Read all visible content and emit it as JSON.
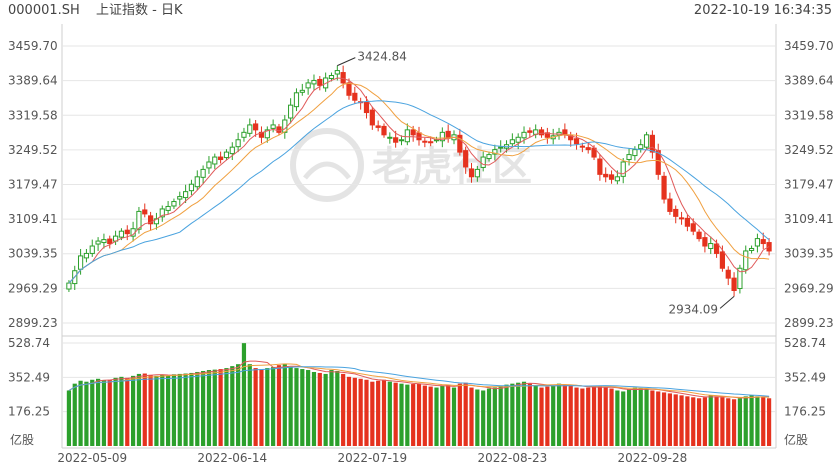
{
  "header": {
    "symbol": "000001.SH",
    "name": "上证指数 - 日K",
    "timestamp": "2022-10-19 16:34:35"
  },
  "watermark": "老虎社区",
  "colors": {
    "up": "#2ca02c",
    "down": "#e5321e",
    "ma5": "#e05a5a",
    "ma10": "#f0a040",
    "ma20": "#4aa3df",
    "grid": "#e6e6e6",
    "text": "#555555"
  },
  "chart_data": {
    "type": "candlestick",
    "price_axis": {
      "ticks": [
        "3459.70",
        "3389.64",
        "3319.58",
        "3249.52",
        "3179.47",
        "3109.41",
        "3039.35",
        "2969.29",
        "2899.23"
      ],
      "ylim": [
        2899.23,
        3459.7
      ]
    },
    "volume_axis": {
      "ticks": [
        "528.74",
        "352.49",
        "176.25"
      ],
      "unit_label": "亿股"
    },
    "x_tick_labels": [
      "2022-05-09",
      "2022-06-14",
      "2022-07-19",
      "2022-08-23",
      "2022-09-28"
    ],
    "annotations": {
      "high_label": "3424.84",
      "low_label": "2934.09"
    },
    "closes": [
      2980,
      3005,
      3035,
      3040,
      3055,
      3065,
      3068,
      3060,
      3075,
      3085,
      3080,
      3090,
      3125,
      3120,
      3100,
      3110,
      3130,
      3135,
      3145,
      3155,
      3165,
      3180,
      3195,
      3210,
      3225,
      3235,
      3230,
      3245,
      3255,
      3270,
      3285,
      3300,
      3290,
      3275,
      3290,
      3300,
      3285,
      3310,
      3340,
      3365,
      3370,
      3385,
      3390,
      3380,
      3395,
      3400,
      3410,
      3385,
      3360,
      3350,
      3345,
      3325,
      3300,
      3295,
      3280,
      3275,
      3265,
      3270,
      3290,
      3280,
      3270,
      3265,
      3265,
      3270,
      3285,
      3275,
      3280,
      3245,
      3215,
      3195,
      3210,
      3235,
      3240,
      3250,
      3255,
      3260,
      3270,
      3275,
      3285,
      3285,
      3290,
      3280,
      3275,
      3278,
      3285,
      3280,
      3270,
      3262,
      3255,
      3250,
      3235,
      3200,
      3195,
      3190,
      3195,
      3225,
      3240,
      3250,
      3260,
      3280,
      3245,
      3200,
      3150,
      3125,
      3115,
      3110,
      3095,
      3085,
      3070,
      3055,
      3060,
      3040,
      3010,
      2990,
      2965,
      3010,
      3045,
      3050,
      3070,
      3060,
      3045
    ],
    "volumes": [
      285,
      320,
      335,
      330,
      340,
      345,
      338,
      340,
      350,
      355,
      350,
      360,
      370,
      372,
      365,
      360,
      365,
      360,
      368,
      370,
      372,
      375,
      380,
      385,
      390,
      392,
      395,
      400,
      410,
      420,
      528,
      420,
      400,
      395,
      400,
      405,
      415,
      420,
      405,
      400,
      395,
      390,
      380,
      375,
      370,
      390,
      385,
      370,
      355,
      350,
      345,
      340,
      330,
      335,
      340,
      330,
      325,
      320,
      315,
      318,
      320,
      310,
      305,
      300,
      310,
      315,
      300,
      320,
      325,
      300,
      290,
      285,
      295,
      300,
      310,
      315,
      320,
      325,
      330,
      320,
      310,
      300,
      305,
      310,
      320,
      315,
      310,
      300,
      295,
      300,
      310,
      305,
      300,
      295,
      285,
      280,
      290,
      300,
      295,
      290,
      285,
      280,
      275,
      270,
      265,
      260,
      255,
      250,
      245,
      250,
      260,
      255,
      250,
      245,
      240,
      245,
      255,
      260,
      255,
      250,
      245
    ]
  }
}
